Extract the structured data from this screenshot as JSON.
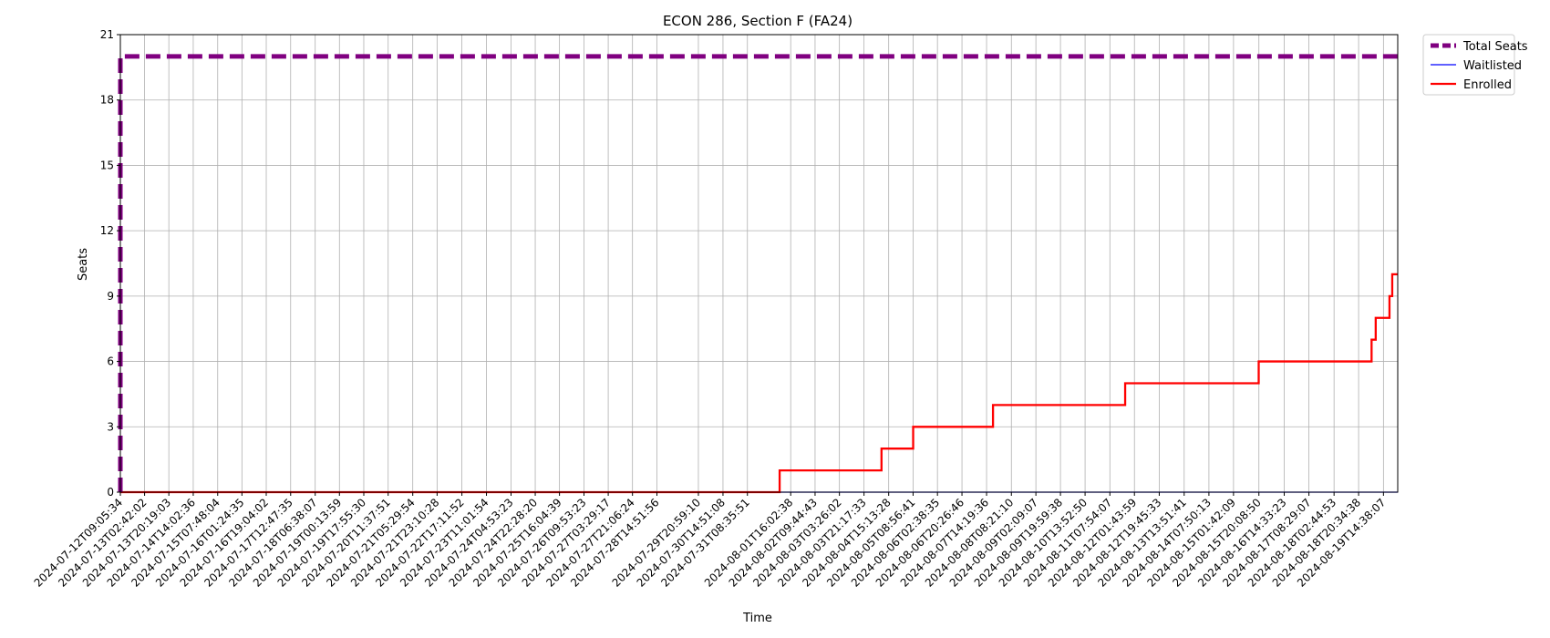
{
  "chart_data": {
    "type": "line",
    "title": "ECON 286, Section F (FA24)",
    "xlabel": "Time",
    "ylabel": "Seats",
    "ylim": [
      0,
      21
    ],
    "yticks": [
      0,
      3,
      6,
      9,
      12,
      15,
      18,
      21
    ],
    "xlim": [
      "2024-07-12T09:05:34",
      "2024-08-20T01:00:00"
    ],
    "grid": true,
    "legend": "outside-top-right",
    "xticks": [
      "2024-07-12T09:05:34",
      "2024-07-13T02:42:02",
      "2024-07-13T20:19:03",
      "2024-07-14T14:02:36",
      "2024-07-15T07:48:04",
      "2024-07-16T01:24:35",
      "2024-07-16T19:04:02",
      "2024-07-17T12:47:35",
      "2024-07-18T06:38:07",
      "2024-07-19T00:13:59",
      "2024-07-19T17:55:30",
      "2024-07-20T11:37:51",
      "2024-07-21T05:29:54",
      "2024-07-21T23:10:28",
      "2024-07-22T17:11:52",
      "2024-07-23T11:01:54",
      "2024-07-24T04:53:23",
      "2024-07-24T22:28:20",
      "2024-07-25T16:04:39",
      "2024-07-26T09:53:23",
      "2024-07-27T03:29:17",
      "2024-07-27T21:06:24",
      "2024-07-28T14:51:56",
      "2024-07-29T20:59:10",
      "2024-07-30T14:51:08",
      "2024-07-31T08:35:51",
      "2024-08-01T16:02:38",
      "2024-08-02T09:44:43",
      "2024-08-03T03:26:02",
      "2024-08-03T21:17:33",
      "2024-08-04T15:13:28",
      "2024-08-05T08:56:41",
      "2024-08-06T02:38:35",
      "2024-08-06T20:26:46",
      "2024-08-07T14:19:36",
      "2024-08-08T08:21:10",
      "2024-08-09T02:09:07",
      "2024-08-09T19:59:38",
      "2024-08-10T13:52:50",
      "2024-08-11T07:54:07",
      "2024-08-12T01:43:59",
      "2024-08-12T19:45:33",
      "2024-08-13T13:51:41",
      "2024-08-14T07:50:13",
      "2024-08-15T01:42:09",
      "2024-08-15T20:08:50",
      "2024-08-16T14:33:23",
      "2024-08-17T08:29:07",
      "2024-08-18T02:44:53",
      "2024-08-18T20:34:38",
      "2024-08-19T14:38:07"
    ],
    "series": [
      {
        "name": "Total Seats",
        "color": "#800080",
        "style": "dashed",
        "points": [
          [
            "2024-07-12T09:05:34",
            0
          ],
          [
            "2024-07-12T09:05:34",
            20
          ],
          [
            "2024-08-20T01:00:00",
            20
          ]
        ]
      },
      {
        "name": "Waitlisted",
        "color": "#0000ff",
        "style": "solid",
        "points": [
          [
            "2024-07-12T09:05:34",
            0
          ],
          [
            "2024-08-20T01:00:00",
            0
          ]
        ]
      },
      {
        "name": "Enrolled",
        "color": "#ff0000",
        "style": "solid",
        "points": [
          [
            "2024-07-12T09:05:34",
            0
          ],
          [
            "2024-08-01T08:00:00",
            0
          ],
          [
            "2024-08-01T08:00:00",
            1
          ],
          [
            "2024-08-04T10:00:00",
            1
          ],
          [
            "2024-08-04T10:00:00",
            2
          ],
          [
            "2024-08-05T09:00:00",
            2
          ],
          [
            "2024-08-05T09:00:00",
            3
          ],
          [
            "2024-08-07T19:00:00",
            3
          ],
          [
            "2024-08-07T19:00:00",
            4
          ],
          [
            "2024-08-11T19:00:00",
            4
          ],
          [
            "2024-08-11T19:00:00",
            5
          ],
          [
            "2024-08-15T20:00:00",
            5
          ],
          [
            "2024-08-15T20:00:00",
            6
          ],
          [
            "2024-08-19T06:00:00",
            6
          ],
          [
            "2024-08-19T06:00:00",
            7
          ],
          [
            "2024-08-19T09:00:00",
            7
          ],
          [
            "2024-08-19T09:00:00",
            8
          ],
          [
            "2024-08-19T19:00:00",
            8
          ],
          [
            "2024-08-19T19:00:00",
            9
          ],
          [
            "2024-08-19T21:00:00",
            9
          ],
          [
            "2024-08-19T21:00:00",
            10
          ],
          [
            "2024-08-20T01:00:00",
            10
          ]
        ]
      }
    ]
  }
}
